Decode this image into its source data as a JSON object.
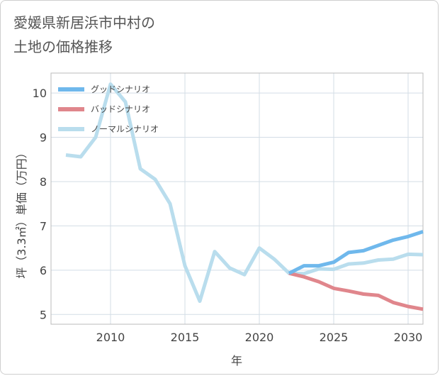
{
  "title_lines": [
    "愛媛県新居浜市中村の",
    "土地の価格推移"
  ],
  "chart_data": {
    "type": "line",
    "xlabel": "年",
    "ylabel": "坪（3.3㎡）単価（万円）",
    "xlim": [
      2006,
      2031
    ],
    "ylim": [
      4.78,
      10.45
    ],
    "xticks": [
      2010,
      2015,
      2020,
      2025,
      2030
    ],
    "yticks": [
      5,
      6,
      7,
      8,
      9,
      10
    ],
    "grid": true,
    "legend_position": "top-left",
    "series": [
      {
        "name": "グッドシナリオ",
        "color": "#6fb8ec",
        "x": [
          2022,
          2023,
          2024,
          2025,
          2026,
          2027,
          2028,
          2029,
          2030,
          2031
        ],
        "y": [
          5.93,
          6.1,
          6.1,
          6.18,
          6.4,
          6.44,
          6.56,
          6.68,
          6.76,
          6.87
        ]
      },
      {
        "name": "バッドシナリオ",
        "color": "#e0868c",
        "x": [
          2022,
          2023,
          2024,
          2025,
          2026,
          2027,
          2028,
          2029,
          2030,
          2031
        ],
        "y": [
          5.93,
          5.85,
          5.74,
          5.59,
          5.53,
          5.46,
          5.43,
          5.27,
          5.18,
          5.12
        ]
      },
      {
        "name": "ノーマルシナリオ",
        "color": "#b9dded",
        "x": [
          2007,
          2008,
          2009,
          2010,
          2011,
          2012,
          2013,
          2014,
          2015,
          2016,
          2017,
          2018,
          2019,
          2020,
          2021,
          2022,
          2023,
          2024,
          2025,
          2026,
          2027,
          2028,
          2029,
          2030,
          2031
        ],
        "y": [
          8.6,
          8.56,
          9.0,
          10.2,
          9.8,
          8.29,
          8.05,
          7.5,
          6.1,
          5.3,
          6.42,
          6.05,
          5.9,
          6.5,
          6.25,
          5.93,
          5.92,
          6.03,
          6.02,
          6.14,
          6.16,
          6.23,
          6.25,
          6.36,
          6.35
        ]
      }
    ]
  }
}
